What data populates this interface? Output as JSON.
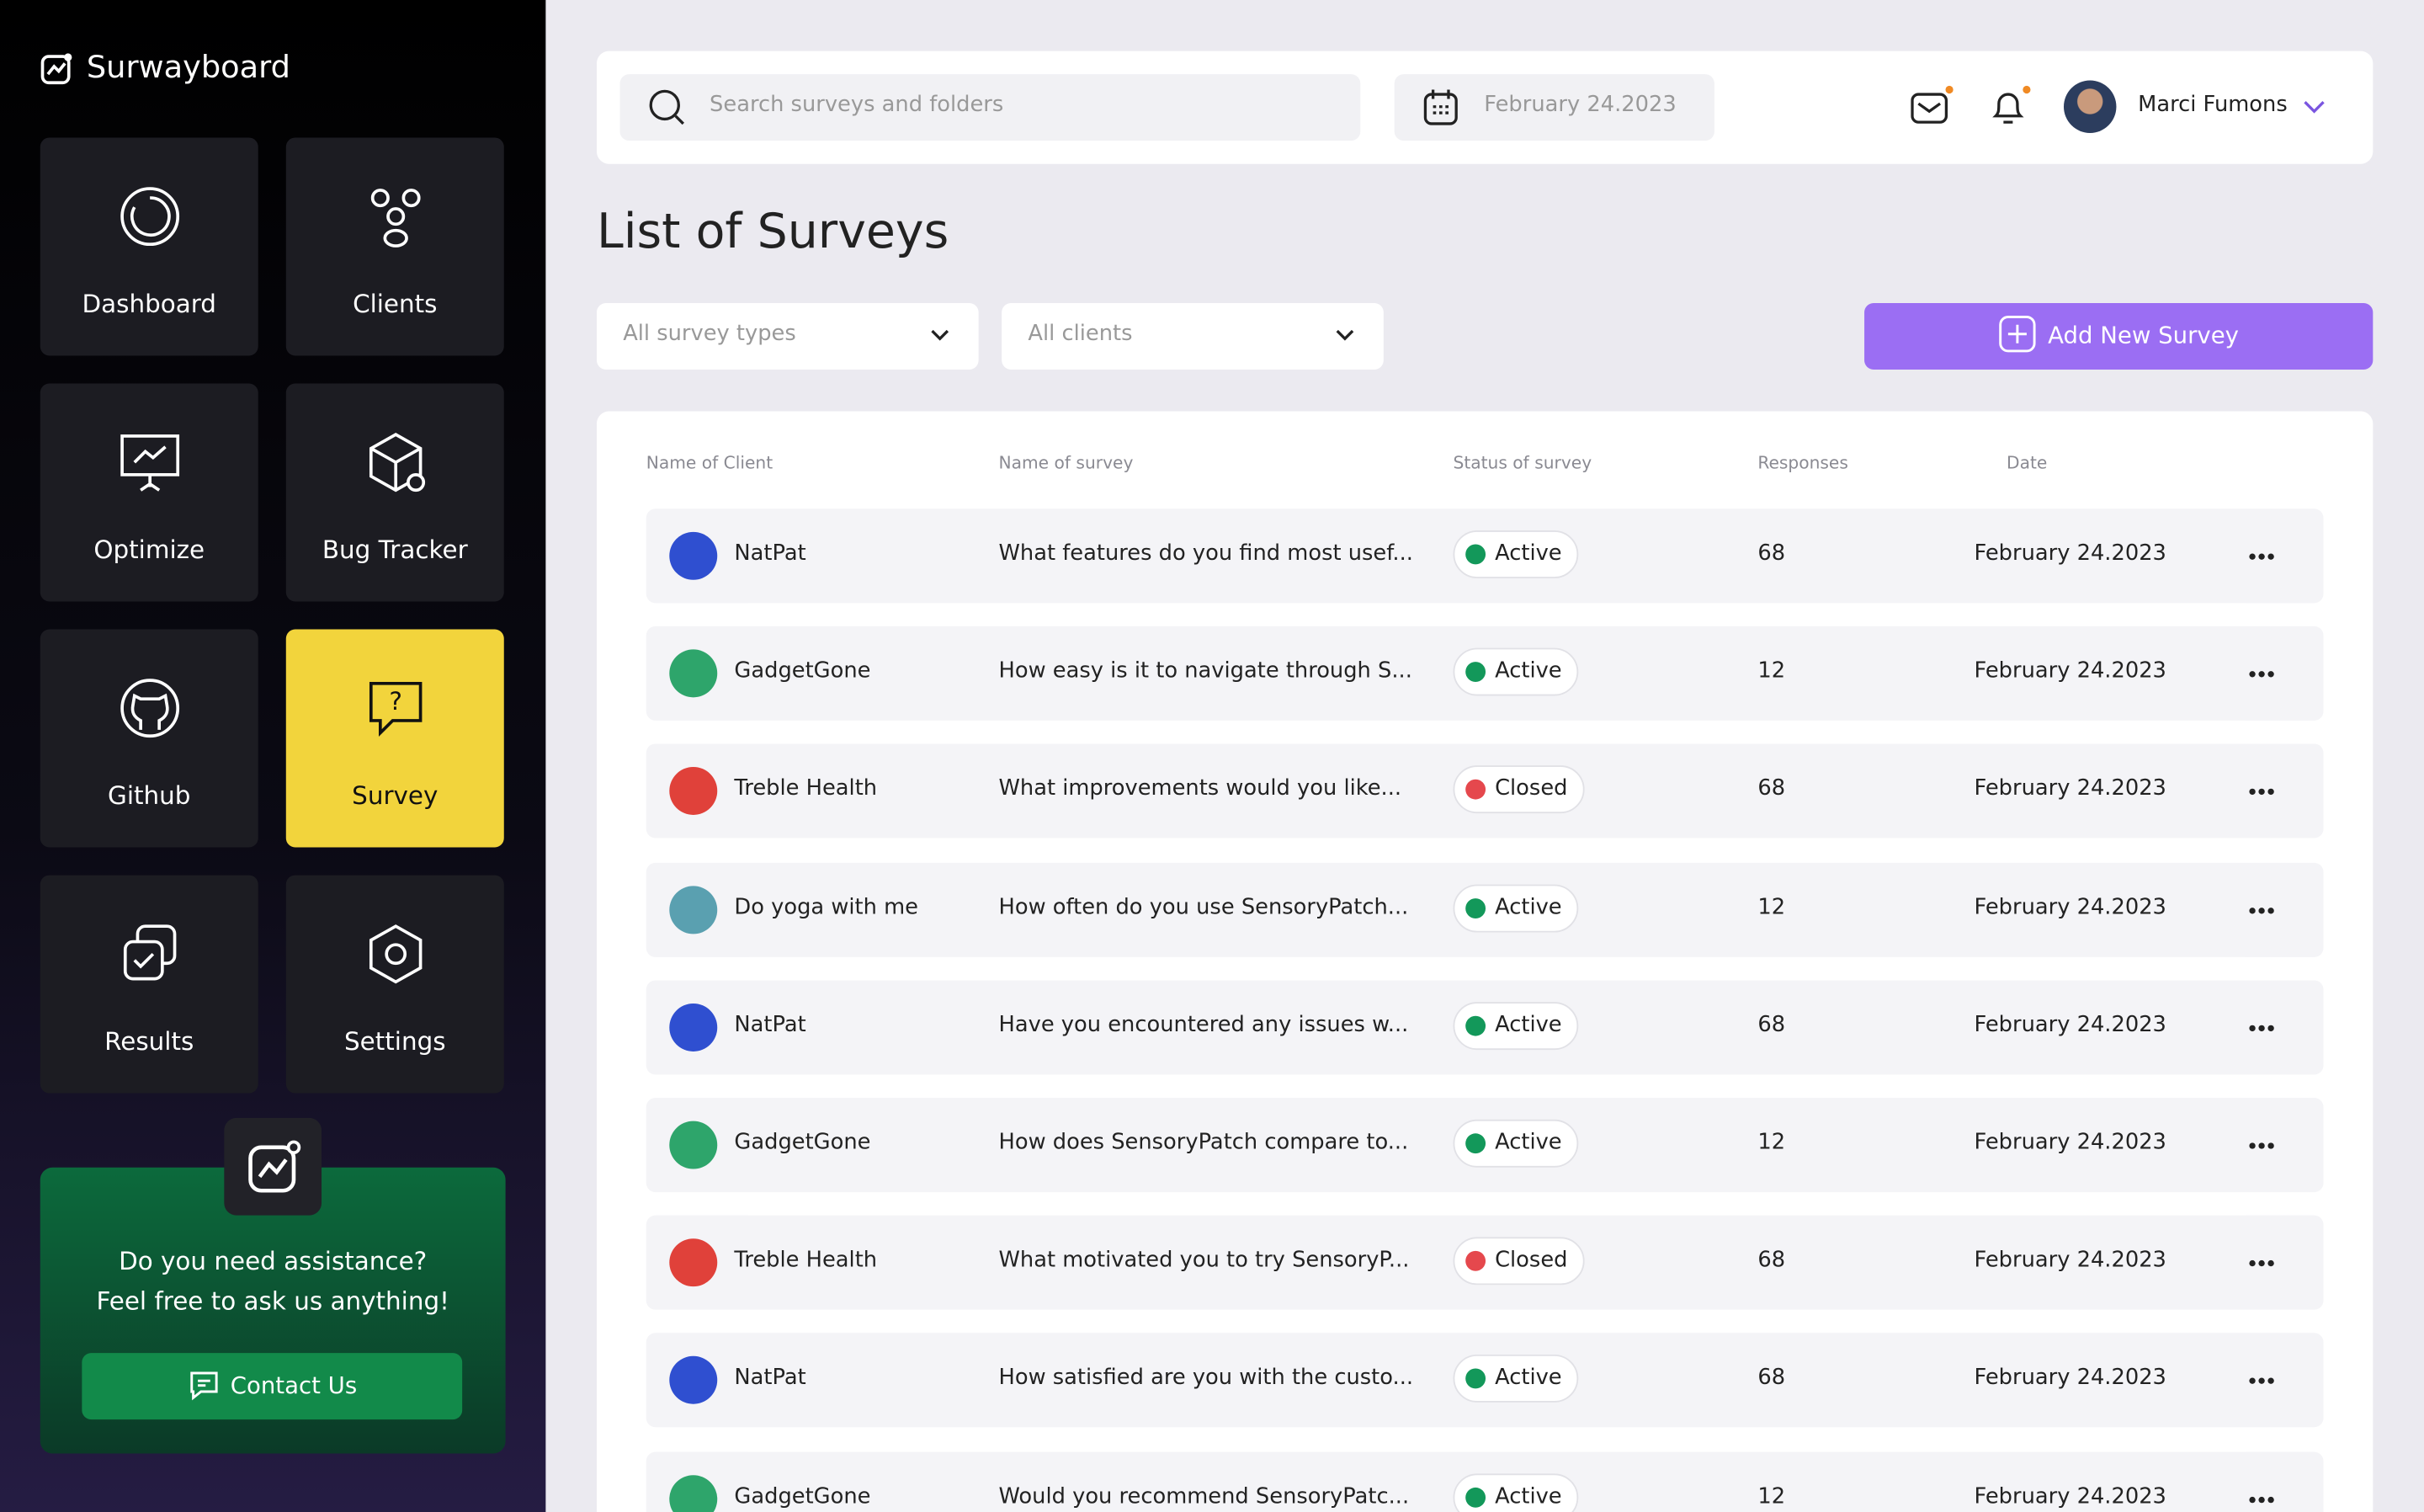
{
  "app": {
    "name": "Surwayboard",
    "nav": [
      "Dashboard",
      "Clients",
      "Optimize",
      "Bug Tracker",
      "Github",
      "Survey",
      "Results",
      "Settings"
    ],
    "help": {
      "line1": "Do you need assistance?",
      "line2": "Feel free to ask us anything!",
      "button": "Contact Us"
    }
  },
  "header": {
    "search_placeholder": "Search surveys and folders",
    "date": "February 24.2023",
    "user": "Marci Fumons"
  },
  "page": {
    "title": "List of Surveys",
    "filters": [
      "All survey types",
      "All clients"
    ],
    "add_button": "Add New Survey"
  },
  "table": {
    "columns": [
      "Name of Client",
      "Name of survey",
      "Status of survey",
      "Responses",
      "Date"
    ],
    "rows": [
      [
        "NatPat",
        "What features do you find most usef...",
        "Active",
        "68",
        "February 24.2023"
      ],
      [
        "GadgetGone",
        "How easy is it to navigate through S...",
        "Active",
        "12",
        "February 24.2023"
      ],
      [
        "Treble Health",
        "What improvements would you like...",
        "Closed",
        "68",
        "February 24.2023"
      ],
      [
        "Do yoga with me",
        "How often do you use SensoryPatch...",
        "Active",
        "12",
        "February 24.2023"
      ],
      [
        "NatPat",
        "Have you encountered any issues w...",
        "Active",
        "68",
        "February 24.2023"
      ],
      [
        "GadgetGone",
        "How does SensoryPatch compare to...",
        "Active",
        "12",
        "February 24.2023"
      ],
      [
        "Treble Health",
        "What motivated you to try SensoryP...",
        "Closed",
        "68",
        "February 24.2023"
      ],
      [
        "NatPat",
        "How satisfied are you with the custo...",
        "Active",
        "68",
        "February 24.2023"
      ],
      [
        "GadgetGone",
        "Would you recommend SensoryPatc...",
        "Active",
        "12",
        "February 24.2023"
      ]
    ]
  }
}
